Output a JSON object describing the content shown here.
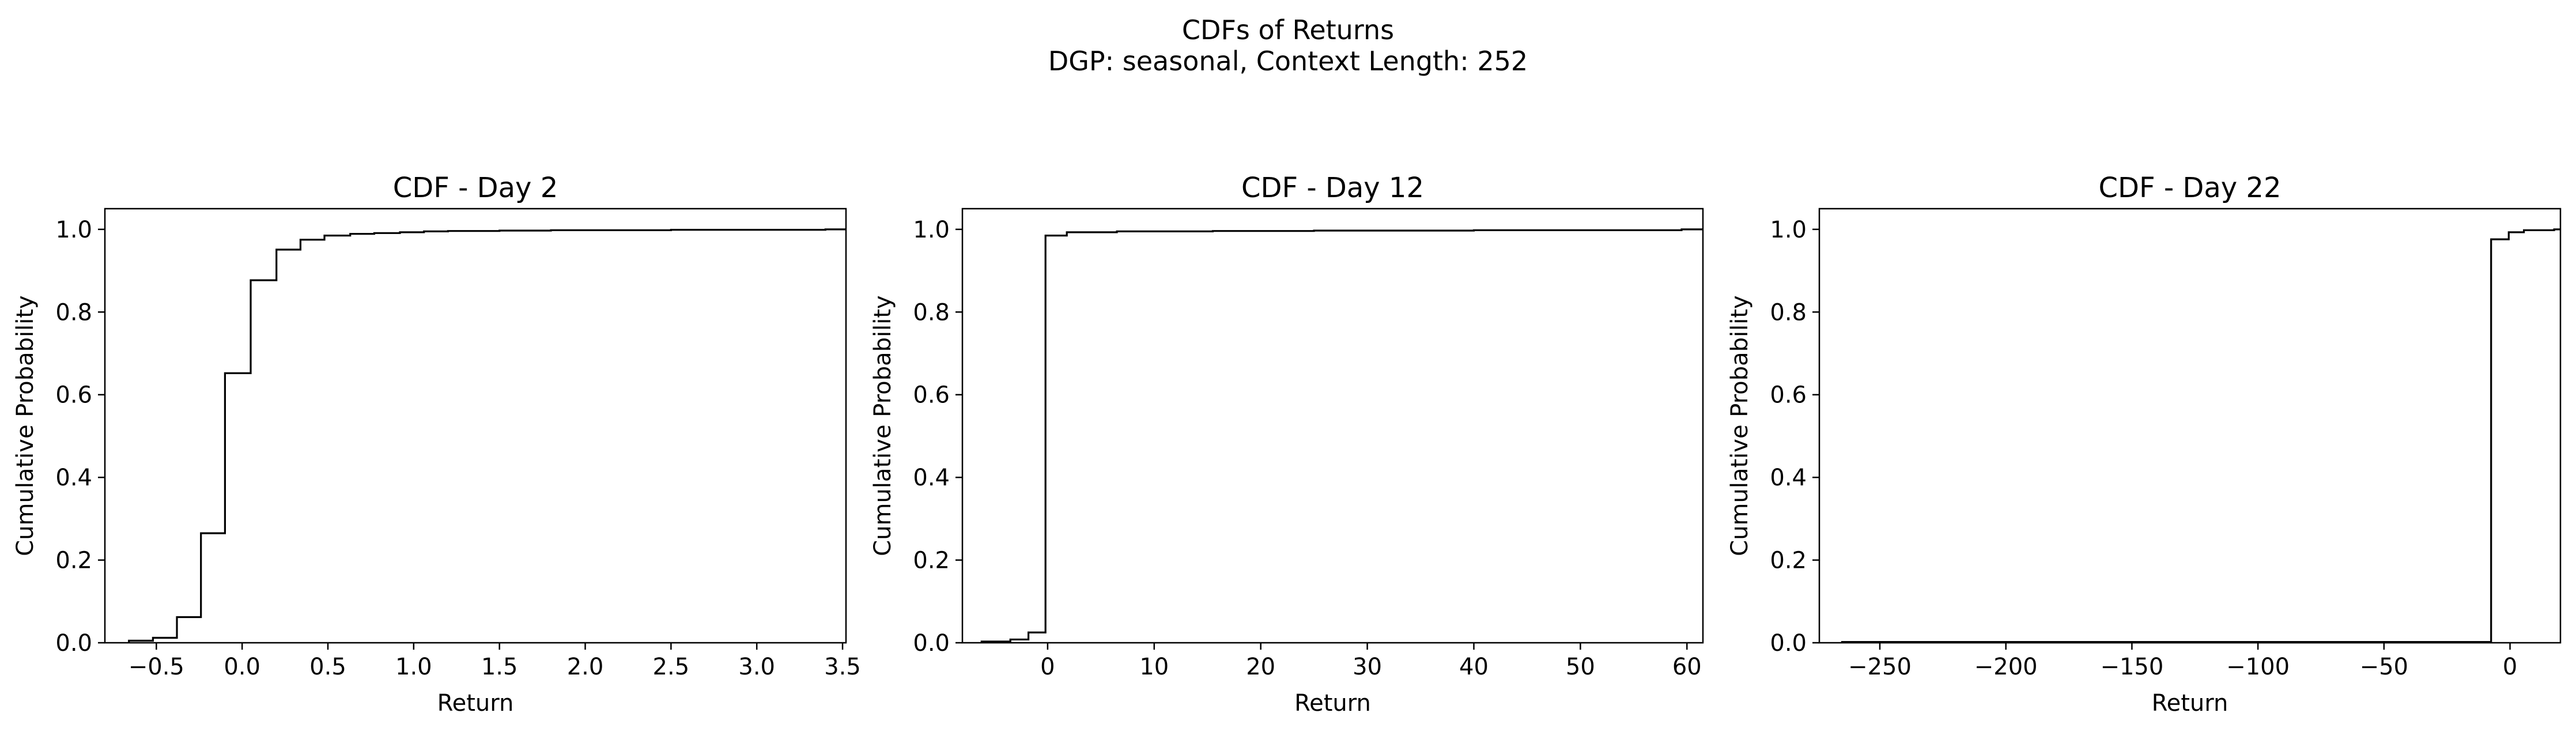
{
  "figure": {
    "suptitle_line1": "CDFs of Returns",
    "suptitle_line2": "DGP: seasonal, Context Length: 252"
  },
  "chart_data": [
    {
      "type": "line",
      "step": true,
      "title": "CDF - Day 2",
      "xlabel": "Return",
      "ylabel": "Cumulative Probability",
      "xlim": [
        -0.8,
        3.52
      ],
      "ylim": [
        0,
        1.05
      ],
      "xticks": [
        -0.5,
        0.0,
        0.5,
        1.0,
        1.5,
        2.0,
        2.5,
        3.0,
        3.5
      ],
      "xtick_labels": [
        "−0.5",
        "0.0",
        "0.5",
        "1.0",
        "1.5",
        "2.0",
        "2.5",
        "3.0",
        "3.5"
      ],
      "yticks": [
        0.0,
        0.2,
        0.4,
        0.6,
        0.8,
        1.0
      ],
      "ytick_labels": [
        "0.0",
        "0.2",
        "0.4",
        "0.6",
        "0.8",
        "1.0"
      ],
      "grid": false,
      "series": [
        {
          "x": [
            -0.66,
            -0.52,
            -0.38,
            -0.24,
            -0.1,
            0.05,
            0.2,
            0.34,
            0.48,
            0.63,
            0.77,
            0.92,
            1.06,
            1.2,
            1.5,
            1.8,
            2.5,
            3.4,
            3.52
          ],
          "y": [
            0.005,
            0.012,
            0.062,
            0.265,
            0.652,
            0.877,
            0.951,
            0.975,
            0.985,
            0.989,
            0.991,
            0.993,
            0.995,
            0.996,
            0.997,
            0.998,
            0.999,
            1.0,
            1.0
          ]
        }
      ]
    },
    {
      "type": "line",
      "step": true,
      "title": "CDF - Day 12",
      "xlabel": "Return",
      "ylabel": "Cumulative Probability",
      "xlim": [
        -8,
        61.5
      ],
      "ylim": [
        0,
        1.05
      ],
      "xticks": [
        0,
        10,
        20,
        30,
        40,
        50,
        60
      ],
      "xtick_labels": [
        "0",
        "10",
        "20",
        "30",
        "40",
        "50",
        "60"
      ],
      "yticks": [
        0.0,
        0.2,
        0.4,
        0.6,
        0.8,
        1.0
      ],
      "ytick_labels": [
        "0.0",
        "0.2",
        "0.4",
        "0.6",
        "0.8",
        "1.0"
      ],
      "grid": false,
      "series": [
        {
          "x": [
            -6.2,
            -3.5,
            -1.8,
            -0.2,
            1.8,
            6.5,
            15.5,
            25.0,
            40.0,
            59.5,
            61.5
          ],
          "y": [
            0.003,
            0.008,
            0.025,
            0.985,
            0.993,
            0.995,
            0.996,
            0.997,
            0.998,
            1.0,
            1.0
          ]
        }
      ]
    },
    {
      "type": "line",
      "step": true,
      "title": "CDF - Day 22",
      "xlabel": "Return",
      "ylabel": "Cumulative Probability",
      "xlim": [
        -274,
        20
      ],
      "ylim": [
        0,
        1.05
      ],
      "xticks": [
        -250,
        -200,
        -150,
        -100,
        -50,
        0
      ],
      "xtick_labels": [
        "−250",
        "−200",
        "−150",
        "−100",
        "−50",
        "0"
      ],
      "yticks": [
        0.0,
        0.2,
        0.4,
        0.6,
        0.8,
        1.0
      ],
      "ytick_labels": [
        "0.0",
        "0.2",
        "0.4",
        "0.6",
        "0.8",
        "1.0"
      ],
      "grid": false,
      "series": [
        {
          "x": [
            -265,
            -7.5,
            -0.5,
            5.5,
            17.5,
            20
          ],
          "y": [
            0.002,
            0.976,
            0.993,
            0.998,
            1.0,
            1.0
          ]
        }
      ]
    }
  ]
}
